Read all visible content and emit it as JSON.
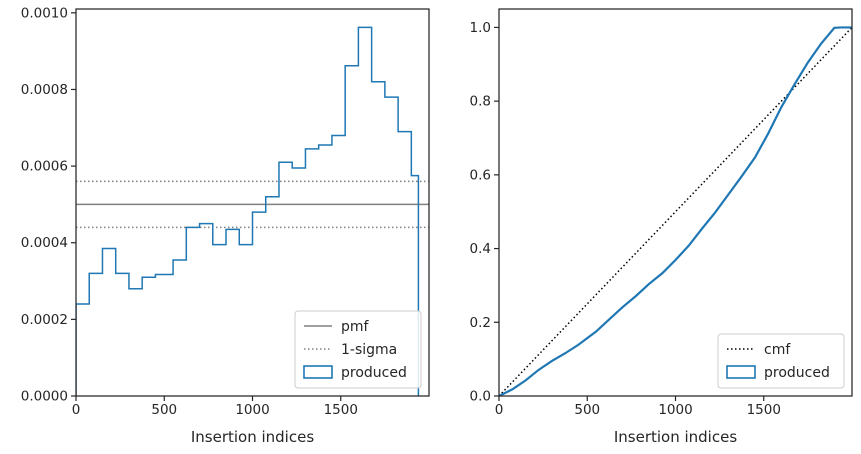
{
  "chart_data": [
    {
      "type": "histogram",
      "xlabel": "Insertion indices",
      "ylabel": "",
      "xlim": [
        0,
        2000
      ],
      "ylim": [
        0,
        0.00101
      ],
      "xticks": [
        0,
        500,
        1000,
        1500
      ],
      "xtick_labels": [
        "0",
        "500",
        "1000",
        "1500"
      ],
      "yticks": [
        0,
        0.0002,
        0.0004,
        0.0006,
        0.0008,
        0.001
      ],
      "ytick_labels": [
        "0.0000",
        "0.0002",
        "0.0004",
        "0.0006",
        "0.0008",
        "0.0010"
      ],
      "bin_edges": [
        0,
        75,
        150,
        225,
        300,
        375,
        450,
        550,
        625,
        700,
        775,
        850,
        925,
        1000,
        1075,
        1150,
        1225,
        1300,
        1375,
        1450,
        1525,
        1600,
        1675,
        1750,
        1825,
        1900,
        1940
      ],
      "counts": [
        0.00024,
        0.00032,
        0.000385,
        0.00032,
        0.00028,
        0.00031,
        0.000317,
        0.000355,
        0.00044,
        0.00045,
        0.000395,
        0.000435,
        0.000395,
        0.00048,
        0.00052,
        0.00061,
        0.000595,
        0.000645,
        0.000655,
        0.00068,
        0.000862,
        0.000962,
        0.00082,
        0.00078,
        0.00069,
        0.000575
      ],
      "hlines": [
        {
          "name": "pmf",
          "y": 0.0005,
          "style": "solid",
          "color": "#808080"
        },
        {
          "name": "1-sigma",
          "y": 0.00056,
          "style": "dotted",
          "color": "#808080"
        },
        {
          "name": "1-sigma",
          "y": 0.00044,
          "style": "dotted",
          "color": "#808080"
        }
      ],
      "histogram_color": "#1f77b4",
      "legend": {
        "placement": "lower right",
        "entries": [
          {
            "label": "pmf",
            "kind": "solid-line",
            "color": "#808080"
          },
          {
            "label": "1-sigma",
            "kind": "dotted-line",
            "color": "#808080"
          },
          {
            "label": "produced",
            "kind": "box",
            "color": "#1f77b4"
          }
        ]
      }
    },
    {
      "type": "line",
      "xlabel": "Insertion indices",
      "ylabel": "",
      "xlim": [
        0,
        2000
      ],
      "ylim": [
        0,
        1.05
      ],
      "xticks": [
        0,
        500,
        1000,
        1500
      ],
      "xtick_labels": [
        "0",
        "500",
        "1000",
        "1500"
      ],
      "yticks": [
        0,
        0.2,
        0.4,
        0.6,
        0.8,
        1.0
      ],
      "ytick_labels": [
        "0.0",
        "0.2",
        "0.4",
        "0.6",
        "0.8",
        "1.0"
      ],
      "series": [
        {
          "name": "cmf",
          "style": "dotted",
          "color": "#000000",
          "x": [
            0,
            2000
          ],
          "y": [
            0,
            1.0
          ]
        },
        {
          "name": "produced",
          "style": "solid",
          "color": "#1f77b4",
          "x": [
            0,
            75,
            150,
            225,
            300,
            375,
            450,
            550,
            625,
            700,
            775,
            850,
            925,
            1000,
            1075,
            1150,
            1225,
            1300,
            1375,
            1450,
            1525,
            1600,
            1675,
            1750,
            1825,
            1900,
            1940,
            2000
          ],
          "y": [
            0,
            0.018,
            0.042,
            0.071,
            0.095,
            0.116,
            0.139,
            0.175,
            0.208,
            0.241,
            0.271,
            0.304,
            0.333,
            0.369,
            0.408,
            0.454,
            0.498,
            0.547,
            0.596,
            0.647,
            0.712,
            0.784,
            0.846,
            0.905,
            0.956,
            0.999,
            1.0,
            1.0
          ]
        }
      ],
      "legend": {
        "placement": "lower right",
        "entries": [
          {
            "label": "cmf",
            "kind": "dotted-line",
            "color": "#000000"
          },
          {
            "label": "produced",
            "kind": "box",
            "color": "#1f77b4"
          }
        ]
      }
    }
  ]
}
